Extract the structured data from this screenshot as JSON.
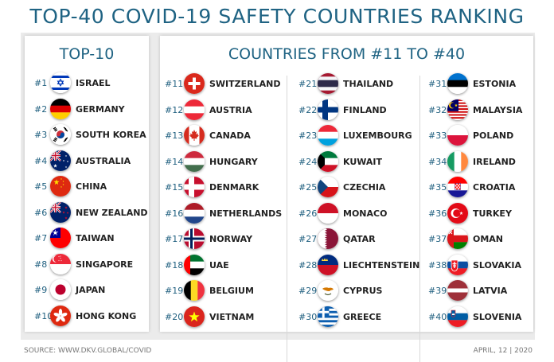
{
  "title": "TOP-40 COVID-19 SAFETY COUNTRIES RANKING",
  "top10": {
    "heading": "TOP-10",
    "items": [
      {
        "rank": "#1",
        "name": "ISRAEL",
        "flag": "israel-flag-icon"
      },
      {
        "rank": "#2",
        "name": "GERMANY",
        "flag": "germany-flag-icon"
      },
      {
        "rank": "#3",
        "name": "SOUTH KOREA",
        "flag": "south-korea-flag-icon"
      },
      {
        "rank": "#4",
        "name": "AUSTRALIA",
        "flag": "australia-flag-icon"
      },
      {
        "rank": "#5",
        "name": "CHINA",
        "flag": "china-flag-icon"
      },
      {
        "rank": "#6",
        "name": "NEW ZEALAND",
        "flag": "new-zealand-flag-icon"
      },
      {
        "rank": "#7",
        "name": "TAIWAN",
        "flag": "taiwan-flag-icon"
      },
      {
        "rank": "#8",
        "name": "SINGAPORE",
        "flag": "singapore-flag-icon"
      },
      {
        "rank": "#9",
        "name": "JAPAN",
        "flag": "japan-flag-icon"
      },
      {
        "rank": "#10",
        "name": "HONG KONG",
        "flag": "hong-kong-flag-icon"
      }
    ]
  },
  "rest": {
    "heading": "COUNTRIES FROM #11 TO #40",
    "items": [
      {
        "rank": "#11",
        "name": "SWITZERLAND",
        "flag": "switzerland-flag-icon"
      },
      {
        "rank": "#12",
        "name": "AUSTRIA",
        "flag": "austria-flag-icon"
      },
      {
        "rank": "#13",
        "name": "CANADA",
        "flag": "canada-flag-icon"
      },
      {
        "rank": "#14",
        "name": "HUNGARY",
        "flag": "hungary-flag-icon"
      },
      {
        "rank": "#15",
        "name": "DENMARK",
        "flag": "denmark-flag-icon"
      },
      {
        "rank": "#16",
        "name": "NETHERLANDS",
        "flag": "netherlands-flag-icon"
      },
      {
        "rank": "#17",
        "name": "NORWAY",
        "flag": "norway-flag-icon"
      },
      {
        "rank": "#18",
        "name": "UAE",
        "flag": "uae-flag-icon"
      },
      {
        "rank": "#19",
        "name": "BELGIUM",
        "flag": "belgium-flag-icon"
      },
      {
        "rank": "#20",
        "name": "VIETNAM",
        "flag": "vietnam-flag-icon"
      },
      {
        "rank": "#21",
        "name": "THAILAND",
        "flag": "thailand-flag-icon"
      },
      {
        "rank": "#22",
        "name": "FINLAND",
        "flag": "finland-flag-icon"
      },
      {
        "rank": "#23",
        "name": "LUXEMBOURG",
        "flag": "luxembourg-flag-icon"
      },
      {
        "rank": "#24",
        "name": "KUWAIT",
        "flag": "kuwait-flag-icon"
      },
      {
        "rank": "#25",
        "name": "CZECHIA",
        "flag": "czechia-flag-icon"
      },
      {
        "rank": "#26",
        "name": "MONACO",
        "flag": "monaco-flag-icon"
      },
      {
        "rank": "#27",
        "name": "QATAR",
        "flag": "qatar-flag-icon"
      },
      {
        "rank": "#28",
        "name": "LIECHTENSTEIN",
        "flag": "liechtenstein-flag-icon"
      },
      {
        "rank": "#29",
        "name": "CYPRUS",
        "flag": "cyprus-flag-icon"
      },
      {
        "rank": "#30",
        "name": "GREECE",
        "flag": "greece-flag-icon"
      },
      {
        "rank": "#31",
        "name": "ESTONIA",
        "flag": "estonia-flag-icon"
      },
      {
        "rank": "#32",
        "name": "MALAYSIA",
        "flag": "malaysia-flag-icon"
      },
      {
        "rank": "#33",
        "name": "POLAND",
        "flag": "poland-flag-icon"
      },
      {
        "rank": "#34",
        "name": "IRELAND",
        "flag": "ireland-flag-icon"
      },
      {
        "rank": "#35",
        "name": "CROATIA",
        "flag": "croatia-flag-icon"
      },
      {
        "rank": "#36",
        "name": "TURKEY",
        "flag": "turkey-flag-icon"
      },
      {
        "rank": "#37",
        "name": "OMAN",
        "flag": "oman-flag-icon"
      },
      {
        "rank": "#38",
        "name": "SLOVAKIA",
        "flag": "slovakia-flag-icon"
      },
      {
        "rank": "#39",
        "name": "LATVIA",
        "flag": "latvia-flag-icon"
      },
      {
        "rank": "#40",
        "name": "SLOVENIA",
        "flag": "slovenia-flag-icon"
      }
    ]
  },
  "footer": {
    "source": "SOURCE: WWW.DKV.GLOBAL/COVID",
    "date": "APRIL, 12 | 2020"
  },
  "colors": {
    "title": "#1f6383",
    "rank": "#1f5f7f",
    "name": "#222222",
    "panel_background": "#ebebeb"
  }
}
